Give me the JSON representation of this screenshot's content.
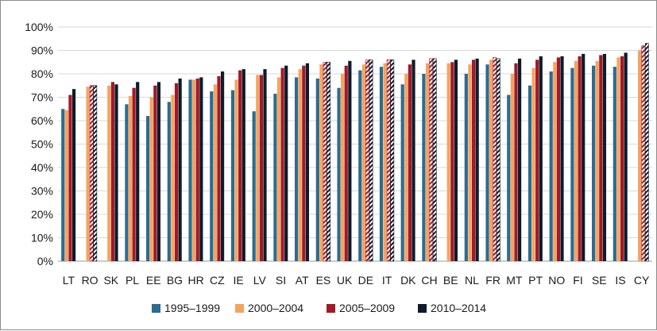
{
  "chart_data": {
    "type": "bar",
    "categories": [
      "LT",
      "RO",
      "SK",
      "PL",
      "EE",
      "BG",
      "HR",
      "CZ",
      "IE",
      "LV",
      "SI",
      "AT",
      "ES",
      "UK",
      "DE",
      "IT",
      "DK",
      "CH",
      "BE",
      "NL",
      "FR",
      "MT",
      "PT",
      "NO",
      "FI",
      "SE",
      "IS",
      "CY"
    ],
    "hatched_categories": [
      "RO",
      "ES",
      "DE",
      "IT",
      "CH",
      "FR",
      "CY"
    ],
    "y_tick_labels": [
      "0%",
      "10%",
      "20%",
      "30%",
      "40%",
      "50%",
      "60%",
      "70%",
      "80%",
      "90%",
      "100%"
    ],
    "ylim": [
      0,
      100
    ],
    "grid": true,
    "legend_position": "bottom",
    "series": [
      {
        "name": "1995–1999",
        "color": "#2e6b8e",
        "values": [
          65,
          null,
          null,
          67,
          62,
          68,
          77.5,
          72.5,
          73,
          64,
          71.5,
          78.5,
          78,
          74,
          81.5,
          83,
          75.5,
          80,
          null,
          80,
          84,
          71,
          75,
          81,
          82.5,
          83.5,
          83,
          null
        ]
      },
      {
        "name": "2000–2004",
        "color": "#f4a460",
        "values": [
          64.5,
          74.5,
          75,
          70.5,
          70,
          71,
          77.5,
          75.5,
          77.5,
          79.5,
          78.5,
          82,
          84,
          80,
          84,
          84.5,
          80,
          84.5,
          84.5,
          84,
          86,
          80,
          82.5,
          85,
          85.5,
          85.5,
          87,
          90
        ]
      },
      {
        "name": "2005–2009",
        "color": "#a01a2a",
        "values": [
          71,
          75,
          76.5,
          74,
          75,
          76,
          78,
          79,
          81.5,
          79.5,
          82.5,
          83.5,
          85,
          83.5,
          86,
          86,
          84,
          86.5,
          85,
          86,
          87,
          84.5,
          86,
          87,
          87.5,
          88,
          87.5,
          92
        ]
      },
      {
        "name": "2010–2014",
        "color": "#0d1b2a",
        "values": [
          73.5,
          75,
          75.5,
          76.5,
          76.5,
          78,
          78.5,
          81,
          82,
          82,
          83.5,
          84.5,
          85,
          85.5,
          86,
          86,
          86,
          86.5,
          86,
          86.5,
          86.5,
          86.5,
          87.5,
          87.5,
          88.5,
          88.5,
          89,
          93
        ]
      }
    ]
  }
}
